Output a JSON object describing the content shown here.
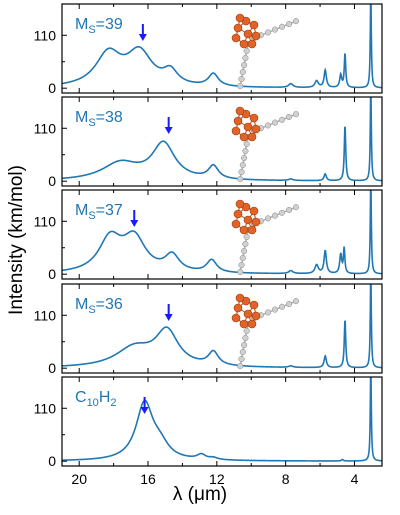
{
  "chart_data": {
    "type": "line",
    "xlabel": "λ (μm)",
    "ylabel": "Intensity (km/mol)",
    "xlim": [
      21,
      2.4
    ],
    "ylim": [
      -10,
      175
    ],
    "xticks": [
      20,
      16,
      12,
      8,
      4
    ],
    "yticks": [
      0,
      110
    ],
    "line_color": "#1f77b4",
    "label_color": "#1f77b4",
    "arrow_color": "#1a1aff",
    "panels": [
      {
        "label_main": "M",
        "label_sub": "S",
        "label_tail": "=39",
        "arrow_x": 16.3,
        "has_molecule": true,
        "peaks": [
          {
            "x": 18.3,
            "h": 68,
            "w": 0.9
          },
          {
            "x": 16.5,
            "h": 70,
            "w": 0.9
          },
          {
            "x": 14.7,
            "h": 28,
            "w": 0.5
          },
          {
            "x": 12.2,
            "h": 26,
            "w": 0.35
          },
          {
            "x": 7.7,
            "h": 8,
            "w": 0.15
          },
          {
            "x": 6.2,
            "h": 14,
            "w": 0.12
          },
          {
            "x": 5.7,
            "h": 36,
            "w": 0.08
          },
          {
            "x": 4.8,
            "h": 26,
            "w": 0.07
          },
          {
            "x": 4.55,
            "h": 70,
            "w": 0.05
          },
          {
            "x": 3.05,
            "h": 200,
            "w": 0.035
          }
        ]
      },
      {
        "label_main": "M",
        "label_sub": "S",
        "label_tail": "=38",
        "arrow_x": 14.8,
        "has_molecule": true,
        "peaks": [
          {
            "x": 17.6,
            "h": 36,
            "w": 1.3
          },
          {
            "x": 15.1,
            "h": 75,
            "w": 0.8
          },
          {
            "x": 12.2,
            "h": 27,
            "w": 0.35
          },
          {
            "x": 7.7,
            "h": 3,
            "w": 0.15
          },
          {
            "x": 5.7,
            "h": 14,
            "w": 0.08
          },
          {
            "x": 4.55,
            "h": 115,
            "w": 0.05
          },
          {
            "x": 3.05,
            "h": 200,
            "w": 0.035
          }
        ]
      },
      {
        "label_main": "M",
        "label_sub": "S",
        "label_tail": "=37",
        "arrow_x": 16.8,
        "has_molecule": true,
        "peaks": [
          {
            "x": 18.2,
            "h": 70,
            "w": 0.8
          },
          {
            "x": 16.8,
            "h": 70,
            "w": 0.8
          },
          {
            "x": 14.6,
            "h": 34,
            "w": 0.5
          },
          {
            "x": 12.3,
            "h": 26,
            "w": 0.35
          },
          {
            "x": 7.7,
            "h": 6,
            "w": 0.15
          },
          {
            "x": 6.2,
            "h": 18,
            "w": 0.12
          },
          {
            "x": 5.7,
            "h": 48,
            "w": 0.08
          },
          {
            "x": 4.8,
            "h": 40,
            "w": 0.07
          },
          {
            "x": 4.6,
            "h": 52,
            "w": 0.05
          },
          {
            "x": 3.05,
            "h": 200,
            "w": 0.035
          }
        ]
      },
      {
        "label_main": "M",
        "label_sub": "S",
        "label_tail": "=36",
        "arrow_x": 14.8,
        "has_molecule": true,
        "peaks": [
          {
            "x": 16.8,
            "h": 40,
            "w": 1.3
          },
          {
            "x": 14.9,
            "h": 72,
            "w": 0.8
          },
          {
            "x": 12.2,
            "h": 28,
            "w": 0.35
          },
          {
            "x": 7.7,
            "h": 3,
            "w": 0.15
          },
          {
            "x": 5.7,
            "h": 24,
            "w": 0.08
          },
          {
            "x": 4.55,
            "h": 100,
            "w": 0.05
          },
          {
            "x": 3.05,
            "h": 200,
            "w": 0.035
          }
        ]
      },
      {
        "label_main": "C",
        "label_sub": "10",
        "label_tail": "H",
        "label_sub2": "2",
        "arrow_x": 16.2,
        "has_molecule": false,
        "peaks": [
          {
            "x": 16.2,
            "h": 118,
            "w": 0.6
          },
          {
            "x": 15.3,
            "h": 26,
            "w": 0.6
          },
          {
            "x": 12.9,
            "h": 10,
            "w": 0.3
          },
          {
            "x": 12.2,
            "h": 4,
            "w": 0.3
          },
          {
            "x": 4.7,
            "h": 3,
            "w": 0.06
          },
          {
            "x": 3.05,
            "h": 200,
            "w": 0.035
          }
        ]
      }
    ]
  }
}
